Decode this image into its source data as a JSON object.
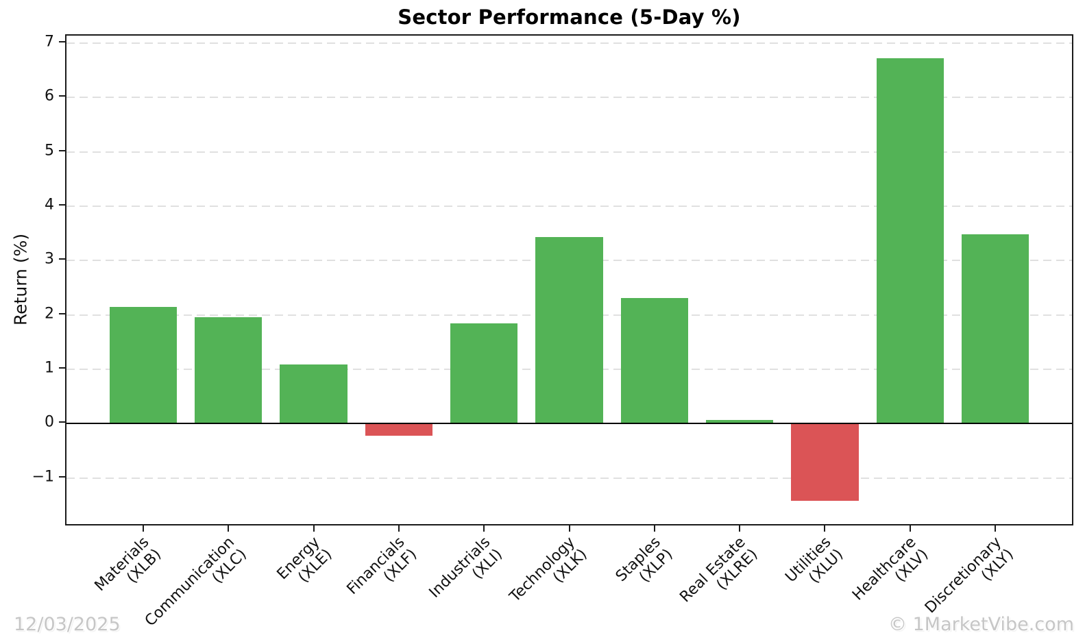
{
  "chart_data": {
    "type": "bar",
    "title": "Sector Performance (5-Day %)",
    "ylabel": "Return (%)",
    "xlabel": "",
    "categories": [
      "Materials",
      "Communication",
      "Energy",
      "Financials",
      "Industrials",
      "Technology",
      "Staples",
      "Real Estate",
      "Utilities",
      "Healthcare",
      "Discretionary"
    ],
    "tickers": [
      "(XLB)",
      "(XLC)",
      "(XLE)",
      "(XLF)",
      "(XLI)",
      "(XLK)",
      "(XLP)",
      "(XLRE)",
      "(XLU)",
      "(XLV)",
      "(XLY)"
    ],
    "values": [
      2.15,
      1.96,
      1.09,
      -0.22,
      1.84,
      3.43,
      2.31,
      0.07,
      -1.42,
      6.73,
      3.48
    ],
    "yticks": [
      7,
      6,
      5,
      4,
      3,
      2,
      1,
      0,
      -1
    ],
    "ylim": [
      -1.85,
      7.14
    ],
    "grid": "horizontal-dashed",
    "zero_line": true,
    "legend": "none",
    "colors": {
      "positive": "#53b356",
      "negative": "#db5456",
      "grid": "#e0e0e0",
      "axis": "#1a1a1a",
      "watermark": "#c6c6c6"
    }
  },
  "footer": {
    "date": "12/03/2025",
    "credit": "© 1MarketVibe.com"
  }
}
